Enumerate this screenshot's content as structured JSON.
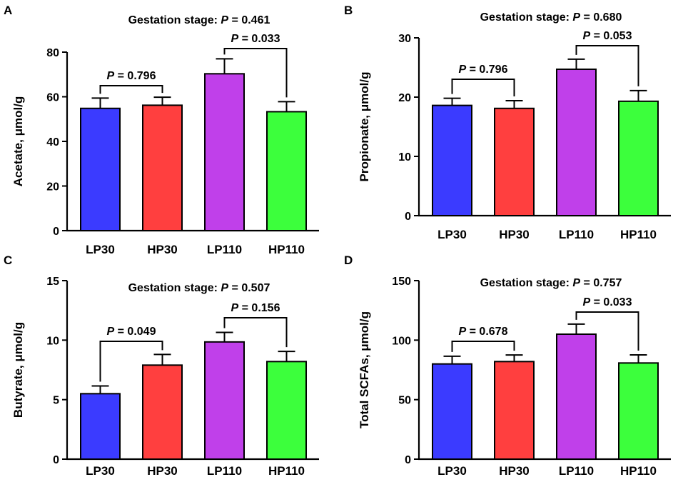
{
  "chart_data": [
    {
      "panel": "A",
      "type": "bar",
      "categories": [
        "LP30",
        "HP30",
        "LP110",
        "HP110"
      ],
      "values": [
        54.8,
        56.2,
        70.3,
        53.3
      ],
      "errors": [
        4.6,
        3.6,
        6.7,
        4.5
      ],
      "colors": [
        "#3b3bff",
        "#ff3f3f",
        "#c040ea",
        "#3cff3c"
      ],
      "ylabel": "Acetate, μmol/g",
      "ylim": [
        0,
        80
      ],
      "yticks": [
        "0",
        "20",
        "40",
        "60",
        "80"
      ],
      "gestation_label": "Gestation stage: ",
      "gestation_p": "0.461",
      "brackets": [
        {
          "from": 0,
          "to": 1,
          "p": "0.796"
        },
        {
          "from": 2,
          "to": 3,
          "p": "0.033"
        }
      ]
    },
    {
      "panel": "B",
      "type": "bar",
      "categories": [
        "LP30",
        "HP30",
        "LP110",
        "HP110"
      ],
      "values": [
        18.6,
        18.1,
        24.7,
        19.3
      ],
      "errors": [
        1.2,
        1.3,
        1.7,
        1.8
      ],
      "colors": [
        "#3b3bff",
        "#ff3f3f",
        "#c040ea",
        "#3cff3c"
      ],
      "ylabel": "Propionate, μmol/g",
      "ylim": [
        0,
        30
      ],
      "yticks": [
        "0",
        "10",
        "20",
        "30"
      ],
      "gestation_label": "Gestation stage: ",
      "gestation_p": "0.680",
      "brackets": [
        {
          "from": 0,
          "to": 1,
          "p": "0.796"
        },
        {
          "from": 2,
          "to": 3,
          "p": "0.053"
        }
      ]
    },
    {
      "panel": "C",
      "type": "bar",
      "categories": [
        "LP30",
        "HP30",
        "LP110",
        "HP110"
      ],
      "values": [
        5.5,
        7.9,
        9.85,
        8.2
      ],
      "errors": [
        0.65,
        0.9,
        0.8,
        0.85
      ],
      "colors": [
        "#3b3bff",
        "#ff3f3f",
        "#c040ea",
        "#3cff3c"
      ],
      "ylabel": "Butyrate, μmol/g",
      "ylim": [
        0,
        15
      ],
      "yticks": [
        "0",
        "5",
        "10",
        "15"
      ],
      "gestation_label": "Gestation stage: ",
      "gestation_p": "0.507",
      "brackets": [
        {
          "from": 0,
          "to": 1,
          "p": "0.049"
        },
        {
          "from": 2,
          "to": 3,
          "p": "0.156"
        }
      ]
    },
    {
      "panel": "D",
      "type": "bar",
      "categories": [
        "LP30",
        "HP30",
        "LP110",
        "HP110"
      ],
      "values": [
        80,
        82,
        105,
        80.8
      ],
      "errors": [
        6.5,
        5.5,
        8.5,
        6.8
      ],
      "colors": [
        "#3b3bff",
        "#ff3f3f",
        "#c040ea",
        "#3cff3c"
      ],
      "ylabel": "Total SCFAs, μmol/g",
      "ylim": [
        0,
        150
      ],
      "yticks": [
        "0",
        "50",
        "100",
        "150"
      ],
      "gestation_label": "Gestation stage: ",
      "gestation_p": "0.757",
      "brackets": [
        {
          "from": 0,
          "to": 1,
          "p": "0.678"
        },
        {
          "from": 2,
          "to": 3,
          "p": "0.033"
        }
      ]
    }
  ],
  "p_symbol": "P",
  "p_equals": " = "
}
